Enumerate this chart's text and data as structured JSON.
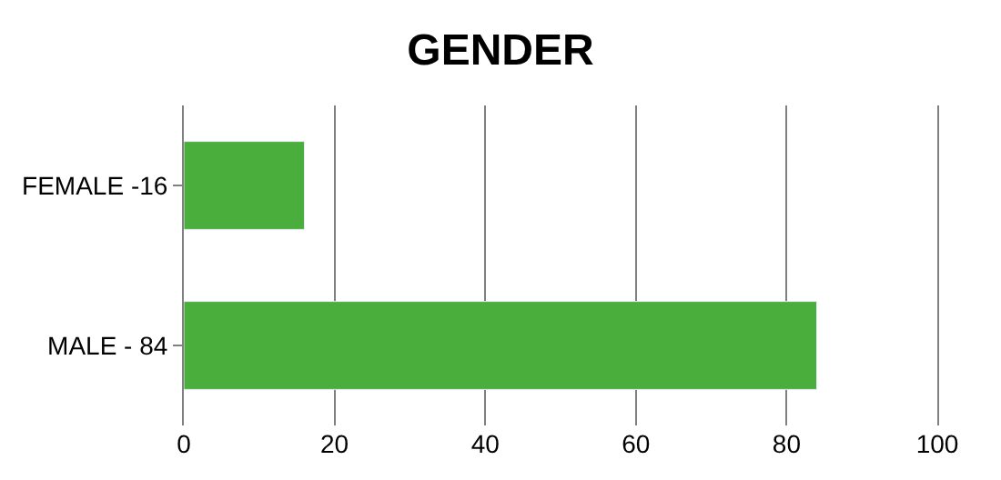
{
  "chart_data": {
    "type": "bar",
    "orientation": "horizontal",
    "title": "GENDER",
    "categories": [
      "FEMALE -16",
      "MALE - 84"
    ],
    "values": [
      16,
      84
    ],
    "color": "#4aae3c",
    "xlim": [
      0,
      100
    ],
    "xticks": [
      0,
      20,
      40,
      60,
      80,
      100
    ],
    "grid": "x"
  }
}
